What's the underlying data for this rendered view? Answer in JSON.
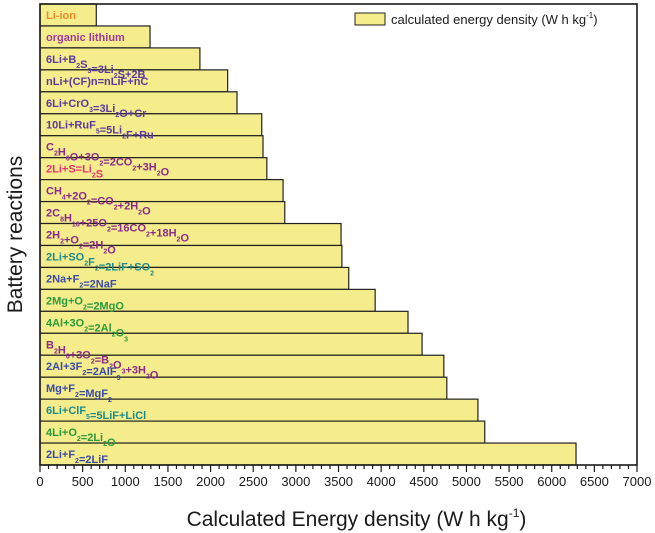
{
  "chart_data": {
    "type": "bar",
    "orientation": "horizontal",
    "title": "",
    "xlabel": "Calculated Energy density (W h kg",
    "xlabel_sup": "-1",
    "xlabel_end": ")",
    "ylabel": "Battery reactions",
    "xlim": [
      0,
      7000
    ],
    "xticks": [
      0,
      500,
      1000,
      1500,
      2000,
      2500,
      3000,
      3500,
      4000,
      4500,
      5000,
      5500,
      6000,
      6500,
      7000
    ],
    "minor_tick_step": 100,
    "grid": false,
    "bar_color": "#f5ec8c",
    "bar_edge_color": "#222222",
    "legend": {
      "position": "top-right",
      "entries": [
        {
          "label": "calculated energy density (W h kg",
          "sup": "-1",
          "end": ")",
          "color": "#f5ec8c"
        }
      ]
    },
    "categories": [
      {
        "segments": [
          [
            "Li-ion",
            ""
          ]
        ],
        "color": "#f08a2a"
      },
      {
        "segments": [
          [
            "organic lithium",
            ""
          ]
        ],
        "color": "#a03aa0"
      },
      {
        "segments": [
          [
            "6Li+B",
            "2"
          ],
          [
            "S",
            "3"
          ],
          [
            "=3Li",
            "2"
          ],
          [
            "S+2B",
            ""
          ]
        ],
        "color": "#5a3aa0"
      },
      {
        "segments": [
          [
            "nLi+(CF)n=nLiF+nC",
            ""
          ]
        ],
        "color": "#5a3aa0"
      },
      {
        "segments": [
          [
            "6Li+CrO",
            "3"
          ],
          [
            "=3Li",
            "2"
          ],
          [
            "O+Cr",
            ""
          ]
        ],
        "color": "#5a3aa0"
      },
      {
        "segments": [
          [
            "10Li+RuF",
            "5"
          ],
          [
            "=5Li",
            "2"
          ],
          [
            "F+Ru",
            ""
          ]
        ],
        "color": "#5a3aa0"
      },
      {
        "segments": [
          [
            "C",
            "2"
          ],
          [
            "H",
            "6"
          ],
          [
            "O+3O",
            "2"
          ],
          [
            "=2CO",
            "2"
          ],
          [
            "+3H",
            "2"
          ],
          [
            "O",
            ""
          ]
        ],
        "color": "#8a2a8a"
      },
      {
        "segments": [
          [
            "2Li+S=Li",
            "2"
          ],
          [
            "S",
            ""
          ]
        ],
        "color": "#e8336e"
      },
      {
        "segments": [
          [
            "CH",
            "4"
          ],
          [
            "+2O",
            "2"
          ],
          [
            "=CO",
            "2"
          ],
          [
            "+2H",
            "2"
          ],
          [
            "O",
            ""
          ]
        ],
        "color": "#8a2a8a"
      },
      {
        "segments": [
          [
            "2C",
            "8"
          ],
          [
            "H",
            "18"
          ],
          [
            "+25O",
            "2"
          ],
          [
            "=16CO",
            "2"
          ],
          [
            "+18H",
            "2"
          ],
          [
            "O",
            ""
          ]
        ],
        "color": "#8a2a8a"
      },
      {
        "segments": [
          [
            "2H",
            "2"
          ],
          [
            "+O",
            "2"
          ],
          [
            "=2H",
            "2"
          ],
          [
            "O",
            ""
          ]
        ],
        "color": "#8a2a8a"
      },
      {
        "segments": [
          [
            "2Li+SO",
            "2"
          ],
          [
            "F",
            "2"
          ],
          [
            "=2LiF+SO",
            "2"
          ]
        ],
        "color": "#1f8a8a"
      },
      {
        "segments": [
          [
            "2Na+F",
            "2"
          ],
          [
            "=2NaF",
            ""
          ]
        ],
        "color": "#3a4aa8"
      },
      {
        "segments": [
          [
            "2Mg+O",
            "2"
          ],
          [
            "=2MgO",
            ""
          ]
        ],
        "color": "#2a9a3a"
      },
      {
        "segments": [
          [
            "4Al+3O",
            "2"
          ],
          [
            "=2Al",
            "2"
          ],
          [
            "O",
            "3"
          ]
        ],
        "color": "#2a9a3a"
      },
      {
        "segments": [
          [
            "B",
            "2"
          ],
          [
            "H",
            "6"
          ],
          [
            "+3O",
            "2"
          ],
          [
            "=B",
            "2"
          ],
          [
            "O",
            "3"
          ],
          [
            "+3H",
            "2"
          ],
          [
            "O",
            ""
          ]
        ],
        "color": "#8a2a8a"
      },
      {
        "segments": [
          [
            "2Al+3F",
            "2"
          ],
          [
            "=2AlF",
            "3"
          ]
        ],
        "color": "#3a4aa8"
      },
      {
        "segments": [
          [
            "Mg+F",
            "2"
          ],
          [
            "=MgF",
            "2"
          ]
        ],
        "color": "#3a4aa8"
      },
      {
        "segments": [
          [
            "6Li+ClF",
            "5"
          ],
          [
            "=5LiF+LiCl",
            ""
          ]
        ],
        "color": "#1f8a8a"
      },
      {
        "segments": [
          [
            "4Li+O",
            "2"
          ],
          [
            "=2Li",
            "2"
          ],
          [
            "O",
            ""
          ]
        ],
        "color": "#2a9a3a"
      },
      {
        "segments": [
          [
            "2Li+F",
            "2"
          ],
          [
            "=2LiF",
            ""
          ]
        ],
        "color": "#3a4aa8"
      }
    ],
    "category_names": [
      "Li-ion",
      "organic lithium",
      "6Li+B2S3=3Li2S+2B",
      "nLi+(CF)n=nLiF+nC",
      "6Li+CrO3=3Li2O+Cr",
      "10Li+RuF5=5Li2F+Ru",
      "C2H6O+3O2=2CO2+3H2O",
      "2Li+S=Li2S",
      "CH4+2O2=CO2+2H2O",
      "2C8H18+25O2=16CO2+18H2O",
      "2H2+O2=2H2O",
      "2Li+SO2F2=2LiF+SO2",
      "2Na+F2=2NaF",
      "2Mg+O2=2MgO",
      "4Al+3O2=2Al2O3",
      "B2H6+3O2=B2O3+3H2O",
      "2Al+3F2=2AlF3",
      "Mg+F2=MgF2",
      "6Li+ClF5=5LiF+LiCl",
      "4Li+O2=2Li2O",
      "2Li+F2=2LiF"
    ],
    "values": [
      660,
      1290,
      1875,
      2200,
      2310,
      2600,
      2615,
      2660,
      2850,
      2870,
      3530,
      3540,
      3620,
      3930,
      4315,
      4480,
      4735,
      4770,
      5135,
      5215,
      6285
    ]
  }
}
